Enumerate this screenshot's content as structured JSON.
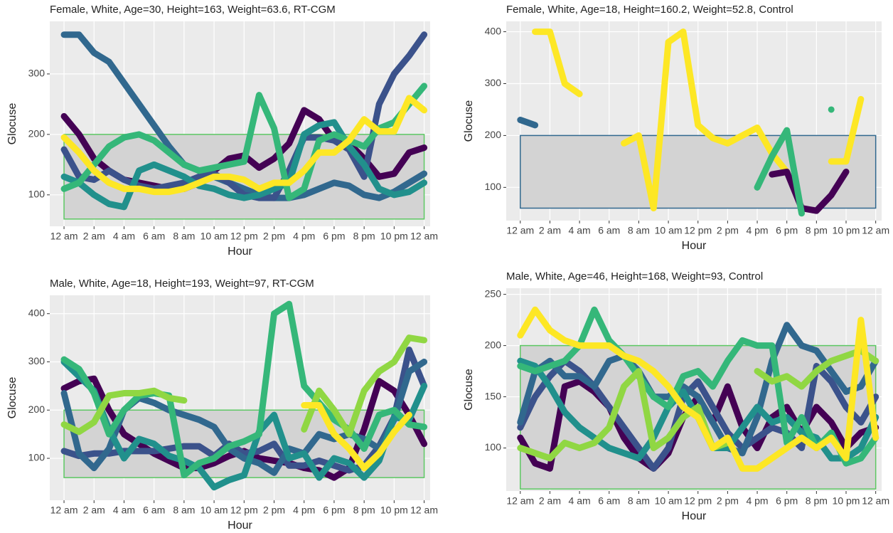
{
  "chart_data": [
    {
      "type": "line",
      "title": "Female, White, Age=30, Height=163, Weight=63.6, RT-CGM",
      "x_label": "Hour",
      "y_label": "Glocuse",
      "x": [
        0,
        1,
        2,
        3,
        4,
        5,
        6,
        7,
        8,
        9,
        10,
        11,
        12,
        13,
        14,
        15,
        16,
        17,
        18,
        19,
        20,
        21,
        22,
        23,
        24
      ],
      "xlim": [
        -0.95,
        24.4
      ],
      "xticks": [
        {
          "value": 0,
          "label": "12 am"
        },
        {
          "value": 2,
          "label": "2 am"
        },
        {
          "value": 4,
          "label": "4 am"
        },
        {
          "value": 6,
          "label": "6 am"
        },
        {
          "value": 8,
          "label": "8 am"
        },
        {
          "value": 10,
          "label": "10 am"
        },
        {
          "value": 12,
          "label": "12 pm"
        },
        {
          "value": 14,
          "label": "2 pm"
        },
        {
          "value": 16,
          "label": "4 pm"
        },
        {
          "value": 18,
          "label": "6 pm"
        },
        {
          "value": 20,
          "label": "8 pm"
        },
        {
          "value": 22,
          "label": "10 pm"
        },
        {
          "value": 24,
          "label": "12 am"
        }
      ],
      "ylim": [
        48,
        387
      ],
      "yticks": [
        100,
        200,
        300
      ],
      "grid": true,
      "target_range": [
        60,
        200
      ],
      "target_color": "#5dc863",
      "series": [
        {
          "color": "#31688e",
          "values": [
            365,
            365,
            335,
            320,
            285,
            250,
            215,
            180,
            150,
            140,
            130,
            120,
            110,
            100,
            95,
            95,
            100,
            110,
            120,
            115,
            100,
            95,
            105,
            120,
            135
          ]
        },
        {
          "color": "#440154",
          "values": [
            230,
            200,
            160,
            140,
            125,
            120,
            115,
            110,
            110,
            120,
            140,
            160,
            165,
            145,
            160,
            185,
            240,
            225,
            190,
            185,
            160,
            130,
            135,
            170,
            178
          ]
        },
        {
          "color": "#3b528b",
          "values": [
            175,
            130,
            125,
            140,
            125,
            115,
            110,
            115,
            120,
            130,
            135,
            120,
            100,
            95,
            95,
            140,
            195,
            195,
            190,
            175,
            130,
            250,
            300,
            330,
            365
          ]
        },
        {
          "color": "#21908c",
          "values": [
            130,
            120,
            100,
            85,
            80,
            140,
            150,
            140,
            130,
            115,
            110,
            100,
            95,
            100,
            110,
            120,
            200,
            215,
            220,
            180,
            150,
            110,
            100,
            105,
            120
          ]
        },
        {
          "color": "#35b779",
          "values": [
            110,
            120,
            150,
            180,
            195,
            200,
            190,
            170,
            150,
            140,
            145,
            150,
            155,
            265,
            210,
            95,
            110,
            190,
            200,
            190,
            180,
            210,
            220,
            250,
            280
          ]
        },
        {
          "color": "#fde725",
          "values": [
            195,
            170,
            140,
            120,
            110,
            110,
            105,
            105,
            110,
            120,
            130,
            130,
            125,
            110,
            120,
            120,
            140,
            170,
            170,
            190,
            225,
            205,
            205,
            260,
            240
          ]
        }
      ]
    },
    {
      "type": "line",
      "title": "Female, White, Age=18, Height=160.2, Weight=52.8, Control",
      "x_label": "Hour",
      "y_label": "Glocuse",
      "x": [
        0,
        1,
        2,
        3,
        4,
        5,
        6,
        7,
        8,
        9,
        10,
        11,
        12,
        13,
        14,
        15,
        16,
        17,
        18,
        19,
        20,
        21,
        22,
        23,
        24
      ],
      "xlim": [
        -0.95,
        24.4
      ],
      "xticks": [
        {
          "value": 0,
          "label": "12 am"
        },
        {
          "value": 2,
          "label": "2 am"
        },
        {
          "value": 4,
          "label": "4 am"
        },
        {
          "value": 6,
          "label": "6 am"
        },
        {
          "value": 8,
          "label": "8 am"
        },
        {
          "value": 10,
          "label": "10 am"
        },
        {
          "value": 12,
          "label": "12 pm"
        },
        {
          "value": 14,
          "label": "2 pm"
        },
        {
          "value": 16,
          "label": "4 pm"
        },
        {
          "value": 18,
          "label": "6 pm"
        },
        {
          "value": 20,
          "label": "8 pm"
        },
        {
          "value": 22,
          "label": "10 pm"
        },
        {
          "value": 24,
          "label": "12 am"
        }
      ],
      "ylim": [
        36,
        420
      ],
      "yticks": [
        100,
        200,
        300,
        400
      ],
      "grid": true,
      "target_range": [
        60,
        200
      ],
      "target_color": "#31688e",
      "series": [
        {
          "color": "#31688e",
          "values": [
            230,
            220,
            null,
            null,
            null,
            null,
            null,
            null,
            null,
            null,
            null,
            null,
            null,
            null,
            null,
            null,
            null,
            null,
            null,
            null,
            null,
            null,
            null,
            null,
            null
          ]
        },
        {
          "color": "#fde725",
          "values": [
            null,
            400,
            400,
            300,
            280,
            null,
            null,
            185,
            200,
            60,
            380,
            400,
            220,
            195,
            185,
            200,
            215,
            165,
            130,
            null,
            null,
            150,
            150,
            270,
            null
          ]
        },
        {
          "color": "#440154",
          "values": [
            null,
            null,
            null,
            null,
            null,
            null,
            null,
            null,
            null,
            null,
            null,
            null,
            null,
            null,
            null,
            null,
            null,
            125,
            130,
            60,
            55,
            85,
            130,
            null,
            null
          ]
        },
        {
          "color": "#35b779",
          "values": [
            null,
            null,
            null,
            null,
            null,
            null,
            null,
            null,
            null,
            null,
            null,
            null,
            null,
            null,
            null,
            null,
            100,
            160,
            210,
            50,
            null,
            250,
            null,
            null,
            null
          ]
        }
      ]
    },
    {
      "type": "line",
      "title": "Male, White, Age=18, Height=193, Weight=97, RT-CGM",
      "x_label": "Hour",
      "y_label": "Glocuse",
      "x": [
        0,
        1,
        2,
        3,
        4,
        5,
        6,
        7,
        8,
        9,
        10,
        11,
        12,
        13,
        14,
        15,
        16,
        17,
        18,
        19,
        20,
        21,
        22,
        23,
        24
      ],
      "xlim": [
        -0.95,
        24.4
      ],
      "xticks": [
        {
          "value": 0,
          "label": "12 am"
        },
        {
          "value": 2,
          "label": "2 am"
        },
        {
          "value": 4,
          "label": "4 am"
        },
        {
          "value": 6,
          "label": "6 am"
        },
        {
          "value": 8,
          "label": "8 am"
        },
        {
          "value": 10,
          "label": "10 am"
        },
        {
          "value": 12,
          "label": "12 pm"
        },
        {
          "value": 14,
          "label": "2 pm"
        },
        {
          "value": 16,
          "label": "4 pm"
        },
        {
          "value": 18,
          "label": "6 pm"
        },
        {
          "value": 20,
          "label": "8 pm"
        },
        {
          "value": 22,
          "label": "10 pm"
        },
        {
          "value": 24,
          "label": "12 am"
        }
      ],
      "ylim": [
        13,
        438
      ],
      "yticks": [
        100,
        200,
        300,
        400
      ],
      "grid": true,
      "target_range": [
        60,
        200
      ],
      "target_color": "#5dc863",
      "series": [
        {
          "color": "#440154",
          "values": [
            245,
            260,
            265,
            200,
            150,
            130,
            110,
            95,
            80,
            80,
            90,
            105,
            115,
            100,
            95,
            90,
            80,
            75,
            60,
            80,
            160,
            260,
            240,
            190,
            130
          ]
        },
        {
          "color": "#3b528b",
          "values": [
            115,
            105,
            110,
            110,
            115,
            115,
            115,
            120,
            125,
            125,
            105,
            130,
            110,
            115,
            130,
            85,
            85,
            95,
            85,
            75,
            85,
            125,
            185,
            325,
            250
          ]
        },
        {
          "color": "#31688e",
          "values": [
            235,
            110,
            80,
            120,
            200,
            225,
            215,
            200,
            190,
            180,
            165,
            120,
            100,
            90,
            70,
            120,
            110,
            150,
            140,
            150,
            140,
            120,
            180,
            280,
            300
          ]
        },
        {
          "color": "#21908c",
          "values": [
            300,
            270,
            240,
            160,
            100,
            140,
            130,
            105,
            95,
            80,
            40,
            55,
            65,
            155,
            190,
            100,
            110,
            60,
            100,
            90,
            60,
            95,
            185,
            180,
            250
          ]
        },
        {
          "color": "#35b779",
          "values": [
            305,
            285,
            235,
            150,
            200,
            230,
            235,
            230,
            65,
            90,
            100,
            125,
            135,
            150,
            400,
            420,
            250,
            215,
            180,
            160,
            120,
            190,
            200,
            170,
            165
          ]
        },
        {
          "color": "#90d743",
          "values": [
            170,
            155,
            175,
            230,
            235,
            235,
            240,
            225,
            220,
            null,
            null,
            null,
            null,
            null,
            null,
            null,
            160,
            240,
            200,
            150,
            240,
            280,
            300,
            350,
            345
          ]
        },
        {
          "color": "#fde725",
          "values": [
            null,
            null,
            null,
            null,
            null,
            null,
            null,
            null,
            null,
            null,
            null,
            null,
            null,
            null,
            null,
            null,
            210,
            210,
            150,
            120,
            80,
            110,
            155,
            190,
            null
          ]
        }
      ]
    },
    {
      "type": "line",
      "title": "Male, White, Age=46, Height=168, Weight=93, Control",
      "x_label": "Hour",
      "y_label": "Glocuse",
      "x": [
        0,
        1,
        2,
        3,
        4,
        5,
        6,
        7,
        8,
        9,
        10,
        11,
        12,
        13,
        14,
        15,
        16,
        17,
        18,
        19,
        20,
        21,
        22,
        23,
        24
      ],
      "xlim": [
        -0.95,
        24.4
      ],
      "xticks": [
        {
          "value": 0,
          "label": "12 am"
        },
        {
          "value": 2,
          "label": "2 am"
        },
        {
          "value": 4,
          "label": "4 am"
        },
        {
          "value": 6,
          "label": "6 am"
        },
        {
          "value": 8,
          "label": "8 am"
        },
        {
          "value": 10,
          "label": "10 am"
        },
        {
          "value": 12,
          "label": "12 pm"
        },
        {
          "value": 14,
          "label": "2 pm"
        },
        {
          "value": 16,
          "label": "4 pm"
        },
        {
          "value": 18,
          "label": "6 pm"
        },
        {
          "value": 20,
          "label": "8 pm"
        },
        {
          "value": 22,
          "label": "10 pm"
        },
        {
          "value": 24,
          "label": "12 am"
        }
      ],
      "ylim": [
        58,
        256
      ],
      "yticks": [
        100,
        150,
        200,
        250
      ],
      "grid": true,
      "target_range": [
        60,
        200
      ],
      "target_color": "#5dc863",
      "series": [
        {
          "color": "#440154",
          "values": [
            110,
            85,
            80,
            160,
            165,
            155,
            140,
            110,
            90,
            80,
            95,
            130,
            150,
            125,
            160,
            120,
            100,
            130,
            140,
            115,
            140,
            125,
            100,
            115,
            120
          ]
        },
        {
          "color": "#3b528b",
          "values": [
            120,
            150,
            170,
            185,
            175,
            160,
            140,
            120,
            100,
            80,
            100,
            150,
            165,
            140,
            115,
            100,
            110,
            120,
            115,
            100,
            180,
            165,
            140,
            125,
            150
          ]
        },
        {
          "color": "#31688e",
          "values": [
            125,
            175,
            185,
            170,
            170,
            160,
            185,
            190,
            175,
            150,
            150,
            160,
            150,
            125,
            100,
            95,
            130,
            185,
            220,
            200,
            195,
            175,
            155,
            160,
            185
          ]
        },
        {
          "color": "#21908c",
          "values": [
            185,
            180,
            160,
            135,
            120,
            110,
            100,
            95,
            90,
            110,
            140,
            155,
            130,
            100,
            100,
            120,
            140,
            125,
            130,
            115,
            110,
            90,
            90,
            100,
            130
          ]
        },
        {
          "color": "#35b779",
          "values": [
            180,
            175,
            180,
            185,
            200,
            235,
            205,
            190,
            170,
            150,
            140,
            170,
            175,
            160,
            185,
            205,
            200,
            200,
            105,
            130,
            100,
            115,
            85,
            90,
            110
          ]
        },
        {
          "color": "#90d743",
          "values": [
            100,
            95,
            90,
            105,
            100,
            105,
            120,
            160,
            175,
            100,
            110,
            130,
            140,
            100,
            105,
            null,
            175,
            165,
            170,
            160,
            175,
            185,
            190,
            195,
            185
          ]
        },
        {
          "color": "#fde725",
          "values": [
            210,
            235,
            215,
            205,
            200,
            200,
            200,
            190,
            185,
            175,
            160,
            140,
            130,
            100,
            110,
            80,
            80,
            90,
            100,
            110,
            100,
            110,
            90,
            225,
            110
          ]
        }
      ]
    }
  ]
}
